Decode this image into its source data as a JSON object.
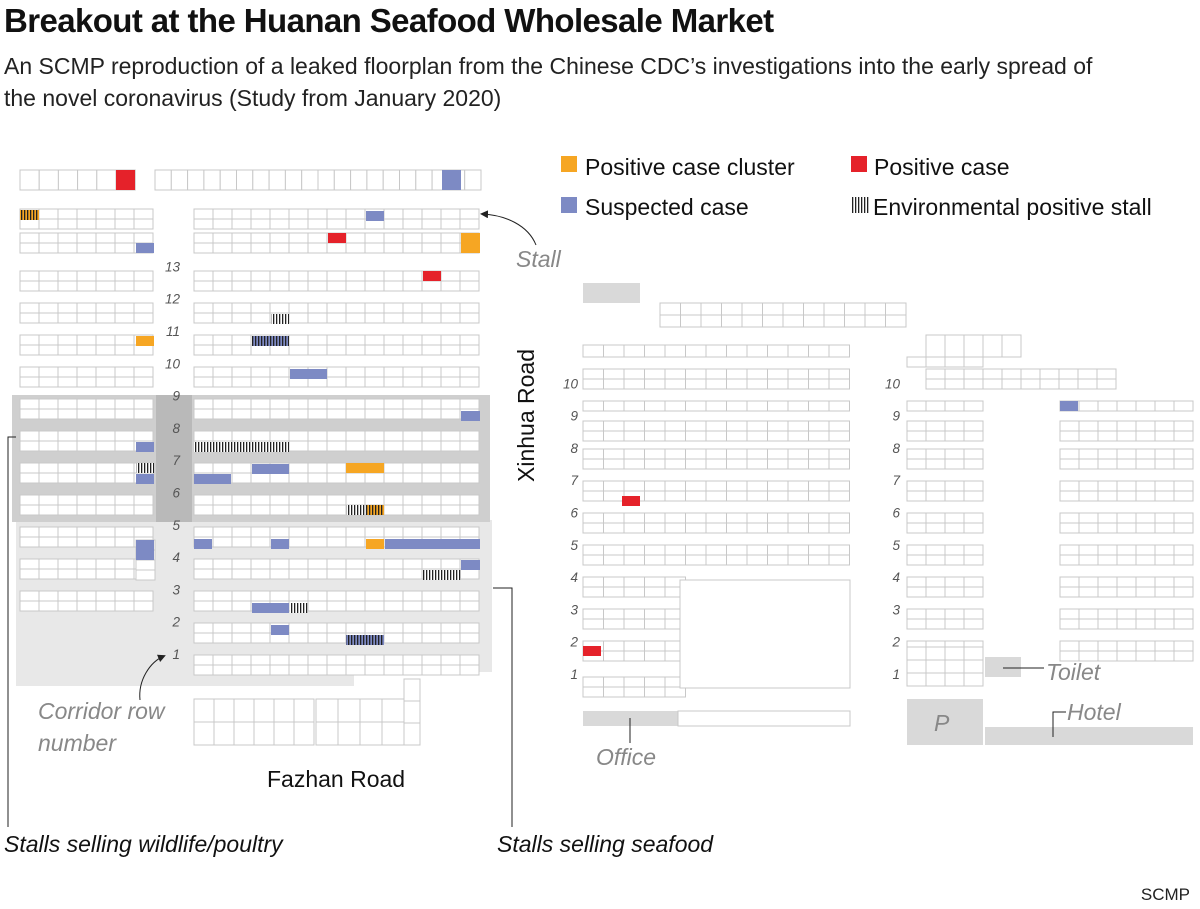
{
  "title": "Breakout at the Huanan Seafood Wholesale Market",
  "subtitle": "An SCMP reproduction of a leaked floorplan from the Chinese CDC’s investigations into the early spread of the novel coronavirus (Study from January 2020)",
  "legend": {
    "positive_cluster": "Positive case cluster",
    "positive_case": "Positive case",
    "suspected_case": "Suspected case",
    "environmental": "Environmental positive stall"
  },
  "colors": {
    "positive_cluster": "#f6a623",
    "positive_case": "#e5222a",
    "suspected_case": "#7d8ac4",
    "environmental": "#222222",
    "stall_outline": "#c8c8c8",
    "wildlife_zone": "#cfcfcf",
    "seafood_zone": "#e8e8e8",
    "facility": "#d9d9d9"
  },
  "roads": {
    "xinhua": "Xinhua Road",
    "fazhan": "Fazhan Road"
  },
  "annotations": {
    "stall": "Stall",
    "corridor": [
      "Corridor row",
      "number"
    ],
    "toilet": "Toilet",
    "hotel": "Hotel",
    "office": "Office",
    "parking": "P",
    "wildlife": "Stalls selling wildlife/poultry",
    "seafood": "Stalls selling seafood"
  },
  "row_numbers": {
    "west_wing": [
      "1",
      "2",
      "3",
      "4",
      "5",
      "6",
      "7",
      "8",
      "9",
      "10",
      "11",
      "12",
      "13"
    ],
    "east_wing": [
      "1",
      "2",
      "3",
      "4",
      "5",
      "6",
      "7",
      "8",
      "9",
      "10"
    ],
    "far_east_wing": [
      "1",
      "2",
      "3",
      "4",
      "5",
      "6",
      "7",
      "8",
      "9",
      "10"
    ]
  },
  "source": "SCMP"
}
